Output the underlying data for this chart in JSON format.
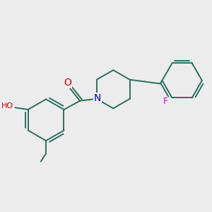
{
  "bg_color": "#ececec",
  "bond_color": "#2d6e5e",
  "bond_width": 1.4,
  "atom_colors": {
    "O": "#cc0000",
    "H": "#888888",
    "N": "#0000cc",
    "F": "#cc00cc",
    "C": "#2d6e5e"
  },
  "font_size_atom": 9,
  "figsize": [
    3.0,
    3.0
  ],
  "dpi": 100
}
